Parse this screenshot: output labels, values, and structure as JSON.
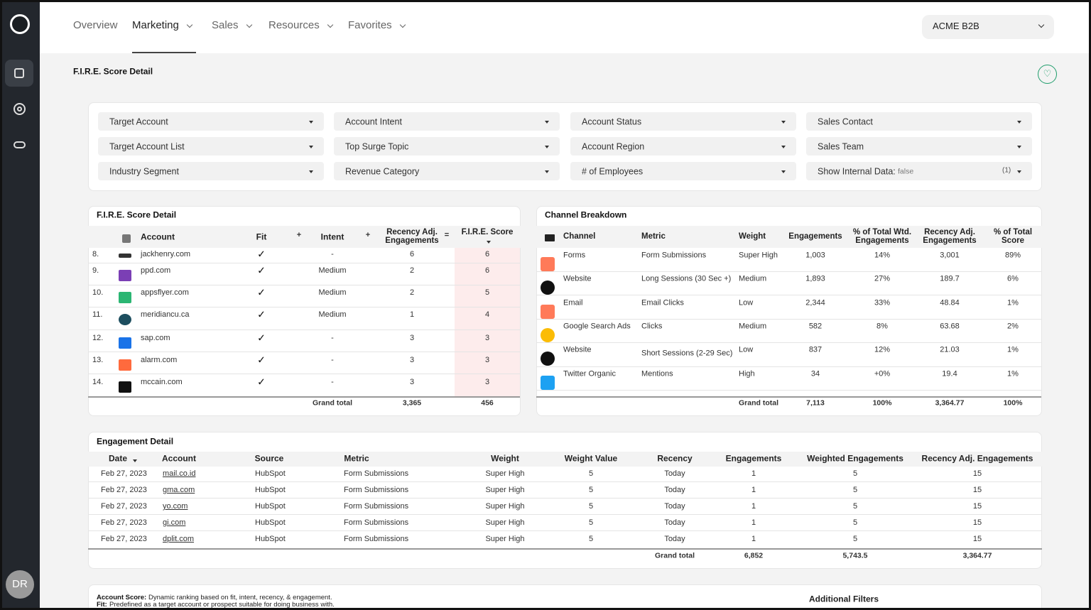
{
  "nav": {
    "items": [
      "Overview",
      "Marketing",
      "Sales",
      "Resources",
      "Favorites"
    ],
    "account": "ACME B2B",
    "avatar": "DR"
  },
  "page_title": "F.I.R.E. Score Detail",
  "filters": [
    "Target Account",
    "Account Intent",
    "Account Status",
    "Sales Contact",
    "Target Account List",
    "Top Surge Topic",
    "Account Region",
    "Sales Team",
    "Industry Segment",
    "Revenue Category",
    "# of Employees"
  ],
  "internal_filter": {
    "label": "Show Internal Data:",
    "value": "false",
    "count": "(1)"
  },
  "fire_table": {
    "title": "F.I.R.E. Score Detail",
    "headers": [
      "Account",
      "Fit",
      "Intent",
      "Recency Adj. Engagements",
      "F.I.R.E. Score"
    ],
    "operators": [
      "+",
      "+",
      "="
    ],
    "rows": [
      [
        "8.",
        "jackhenry.com",
        "✓",
        "-",
        "6",
        "6"
      ],
      [
        "9.",
        "ppd.com",
        "✓",
        "Medium",
        "2",
        "6"
      ],
      [
        "10.",
        "appsflyer.com",
        "✓",
        "Medium",
        "2",
        "5"
      ],
      [
        "11.",
        "meridiancu.ca",
        "✓",
        "Medium",
        "1",
        "4"
      ],
      [
        "12.",
        "sap.com",
        "✓",
        "-",
        "3",
        "3"
      ],
      [
        "13.",
        "alarm.com",
        "✓",
        "-",
        "3",
        "3"
      ],
      [
        "14.",
        "mccain.com",
        "✓",
        "-",
        "3",
        "3"
      ]
    ],
    "total_label": "Grand total",
    "totals": [
      "3,365",
      "456"
    ]
  },
  "channel_table": {
    "title": "Channel Breakdown",
    "headers": [
      "Channel",
      "Metric",
      "Weight",
      "Engagements",
      "% of Total Wtd. Engagements",
      "Recency Adj. Engagements",
      "% of Total Score"
    ],
    "rows": [
      [
        "Forms",
        "Form Submissions",
        "Super High",
        "1,003",
        "14%",
        "3,001",
        "89%"
      ],
      [
        "Website",
        "Long Sessions (30 Sec +)",
        "Medium",
        "1,893",
        "27%",
        "189.7",
        "6%"
      ],
      [
        "Email",
        "Email Clicks",
        "Low",
        "2,344",
        "33%",
        "48.84",
        "1%"
      ],
      [
        "Google Search Ads",
        "Clicks",
        "Medium",
        "582",
        "8%",
        "63.68",
        "2%"
      ],
      [
        "Website",
        "Short Sessions (2-29 Sec)",
        "Low",
        "837",
        "12%",
        "21.03",
        "1%"
      ],
      [
        "Twitter Organic",
        "Mentions",
        "High",
        "34",
        "+0%",
        "19.4",
        "1%"
      ]
    ],
    "total_label": "Grand total",
    "totals": [
      "7,113",
      "100%",
      "3,364.77",
      "100%"
    ]
  },
  "engagement_table": {
    "title": "Engagement Detail",
    "headers": [
      "Date",
      "Account",
      "Source",
      "Metric",
      "Weight",
      "Weight Value",
      "Recency",
      "Engagements",
      "Weighted Engagements",
      "Recency Adj. Engagements"
    ],
    "rows": [
      [
        "Feb 27, 2023",
        "mail.co.id",
        "HubSpot",
        "Form Submissions",
        "Super High",
        "5",
        "Today",
        "1",
        "5",
        "15"
      ],
      [
        "Feb 27, 2023",
        "gma.com",
        "HubSpot",
        "Form Submissions",
        "Super High",
        "5",
        "Today",
        "1",
        "5",
        "15"
      ],
      [
        "Feb 27, 2023",
        "yo.com",
        "HubSpot",
        "Form Submissions",
        "Super High",
        "5",
        "Today",
        "1",
        "5",
        "15"
      ],
      [
        "Feb 27, 2023",
        "gi.com",
        "HubSpot",
        "Form Submissions",
        "Super High",
        "5",
        "Today",
        "1",
        "5",
        "15"
      ],
      [
        "Feb 27, 2023",
        "dplit.com",
        "HubSpot",
        "Form Submissions",
        "Super High",
        "5",
        "Today",
        "1",
        "5",
        "15"
      ]
    ],
    "total_label": "Grand total",
    "totals": [
      "6,852",
      "5,743.5",
      "3,364.77"
    ]
  },
  "footer": {
    "notes": [
      {
        "term": "Account Score:",
        "text": "Dynamic ranking based on fit, intent, recency, & engagement."
      },
      {
        "term": "Fit:",
        "text": "Predefined as a target account or prospect suitable for doing business with."
      }
    ],
    "additional_filters": "Additional Filters"
  }
}
